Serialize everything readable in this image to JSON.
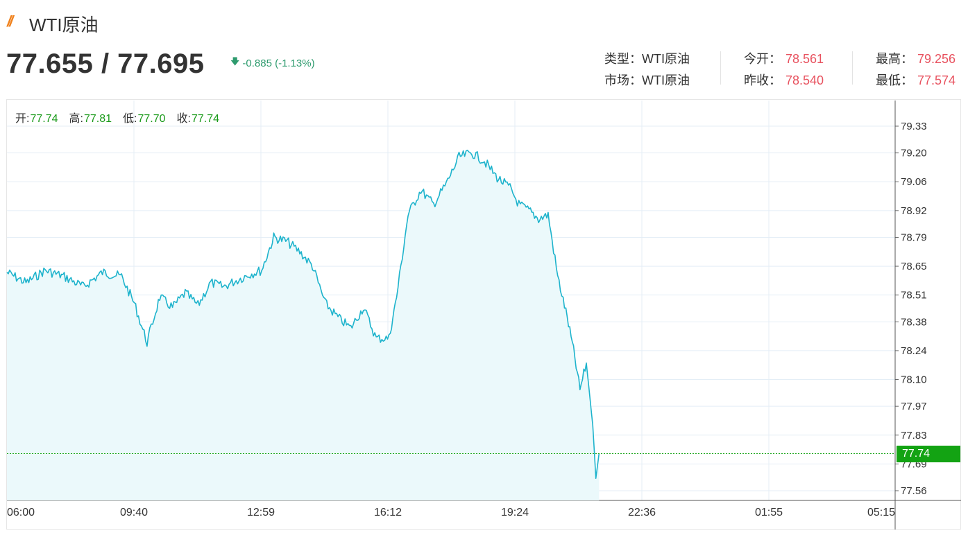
{
  "header": {
    "logo_glyph": "//",
    "title": "WTI原油",
    "price": "77.655 / 77.695",
    "change": "-0.885 (-1.13%)",
    "change_arrow_icon": "arrow-down-icon"
  },
  "info": {
    "type_label": "类型：",
    "type_value": "WTI原油",
    "market_label": "市场：",
    "market_value": "WTI原油",
    "open_label": "今开：",
    "open_value": "78.561",
    "prev_close_label": "昨收：",
    "prev_close_value": "78.540",
    "high_label": "最高：",
    "high_value": "79.256",
    "low_label": "最低：",
    "low_value": "77.574"
  },
  "ohlc": {
    "open_label": "开:",
    "open_value": "77.74",
    "high_label": "高:",
    "high_value": "77.81",
    "low_label": "低:",
    "low_value": "77.70",
    "close_label": "收:",
    "close_value": "77.74"
  },
  "current_price_label": "77.74",
  "colors": {
    "accent_orange": "#f0821e",
    "line": "#1db3cc",
    "area": "#ebf9fb",
    "down_green": "#2e9b6e",
    "up_red": "#e8525f",
    "ohlc_green": "#1a9a1a",
    "badge_green": "#13a313",
    "grid": "#e4eef6"
  },
  "chart_data": {
    "type": "area",
    "x_ticks": [
      "06:00",
      "09:40",
      "12:59",
      "16:12",
      "19:24",
      "22:36",
      "01:55",
      "05:15"
    ],
    "y_ticks": [
      "79.33",
      "79.20",
      "79.06",
      "78.92",
      "78.79",
      "78.65",
      "78.51",
      "78.38",
      "78.24",
      "78.10",
      "77.97",
      "77.83",
      "77.69",
      "77.56"
    ],
    "ylim": [
      77.52,
      79.37
    ],
    "current_value": 77.74,
    "series": [
      {
        "x": [
          "06:00",
          "06:30",
          "07:00",
          "07:30",
          "08:00",
          "08:30",
          "09:00",
          "09:20",
          "09:40",
          "10:00",
          "10:20",
          "10:40",
          "11:00",
          "11:20",
          "11:40",
          "12:00",
          "12:20",
          "12:40",
          "12:59",
          "13:20",
          "13:40",
          "14:00",
          "14:20",
          "14:40",
          "15:00",
          "15:20",
          "15:40",
          "16:00",
          "16:12",
          "16:30",
          "16:50",
          "17:10",
          "17:30",
          "17:50",
          "18:10",
          "18:30",
          "18:50",
          "19:10",
          "19:24",
          "19:40",
          "19:55",
          "20:10",
          "20:25",
          "20:40",
          "20:50",
          "21:00",
          "21:10",
          "21:20",
          "21:25",
          "21:30"
        ],
        "values": [
          78.62,
          78.57,
          78.63,
          78.6,
          78.55,
          78.62,
          78.6,
          78.47,
          78.28,
          78.5,
          78.45,
          78.52,
          78.46,
          78.57,
          78.55,
          78.58,
          78.61,
          78.63,
          78.79,
          78.77,
          78.72,
          78.65,
          78.47,
          78.4,
          78.35,
          78.45,
          78.3,
          78.3,
          78.5,
          78.9,
          79.02,
          78.95,
          79.05,
          79.18,
          79.2,
          79.16,
          79.08,
          79.03,
          78.95,
          78.92,
          78.88,
          78.9,
          78.6,
          78.4,
          78.24,
          78.05,
          78.18,
          77.88,
          77.62,
          77.74
        ]
      }
    ]
  }
}
